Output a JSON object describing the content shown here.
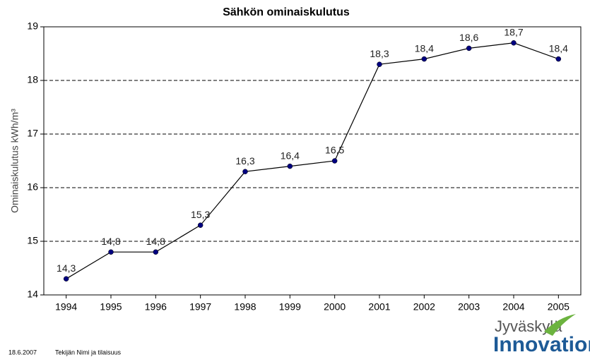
{
  "chart_data": {
    "type": "line",
    "title": "Sähkön ominaiskulutus",
    "y_label": "Ominaiskulutus kWh/m³",
    "categories": [
      "1994",
      "1995",
      "1996",
      "1997",
      "1998",
      "1999",
      "2000",
      "2001",
      "2002",
      "2003",
      "2004",
      "2005"
    ],
    "values": [
      14.3,
      14.8,
      14.8,
      15.3,
      16.3,
      16.4,
      16.5,
      18.3,
      18.4,
      18.6,
      18.7,
      18.4
    ],
    "value_labels": [
      "14,3",
      "14,8",
      "14,8",
      "15,3",
      "16,3",
      "16,4",
      "16,5",
      "18,3",
      "18,4",
      "18,6",
      "18,7",
      "18,4"
    ],
    "color": "#000080",
    "ylim": [
      14,
      19
    ],
    "yticks": [
      14,
      15,
      16,
      17,
      18,
      19
    ],
    "grid": true
  },
  "footer": {
    "date": "18.6.2007",
    "author": "Tekijän Nimi ja tilaisuus",
    "logo_top": "Jyväskylä",
    "logo_bottom": "Innovation"
  }
}
